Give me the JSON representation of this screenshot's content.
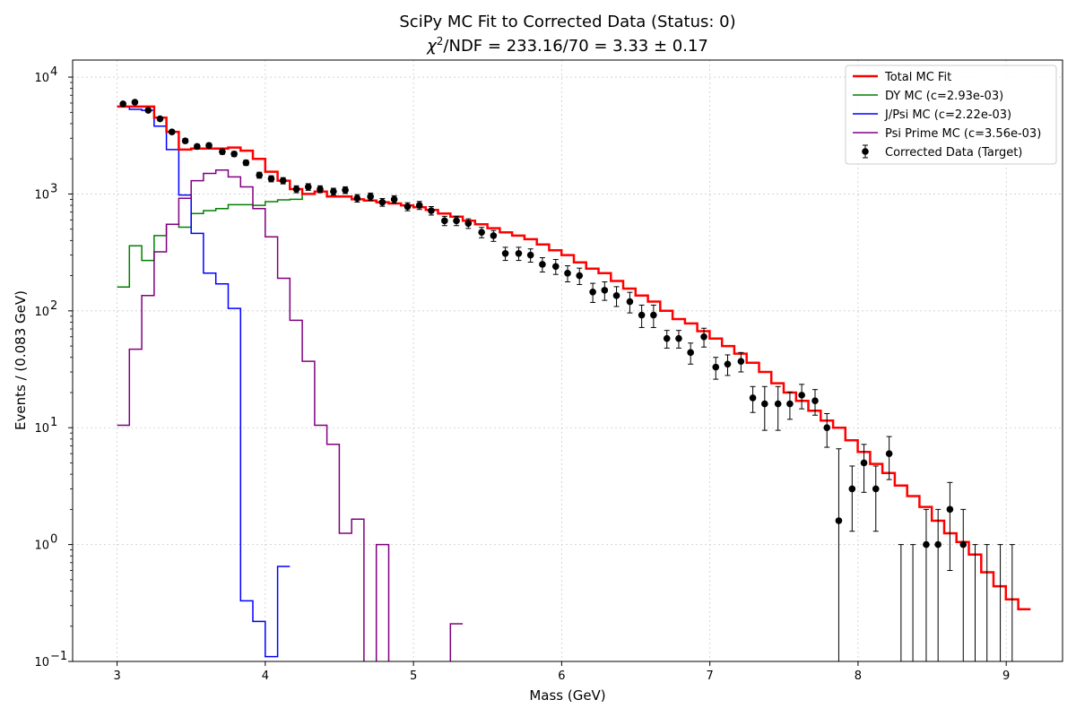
{
  "chart_data": {
    "type": "line",
    "title": "SciPy MC Fit to Corrected Data (Status: 0)",
    "subtitle_prefix": "χ",
    "subtitle_sup": "2",
    "subtitle_rest": "/NDF = 233.16/70 = 3.33 ± 0.17",
    "xlabel": "Mass (GeV)",
    "ylabel": "Events / (0.083 GeV)",
    "xlim": [
      2.7,
      9.38
    ],
    "ylim": [
      0.1,
      14000
    ],
    "yscale": "log",
    "grid": true,
    "legend_position": "top-right",
    "x_ticks": [
      {
        "value": 3,
        "label": "3"
      },
      {
        "value": 4,
        "label": "4"
      },
      {
        "value": 5,
        "label": "5"
      },
      {
        "value": 6,
        "label": "6"
      },
      {
        "value": 7,
        "label": "7"
      },
      {
        "value": 8,
        "label": "8"
      },
      {
        "value": 9,
        "label": "9"
      }
    ],
    "y_ticks": [
      {
        "value": 0.1,
        "base": "10",
        "exp": "−1"
      },
      {
        "value": 1,
        "base": "10",
        "exp": "0"
      },
      {
        "value": 10,
        "base": "10",
        "exp": "1"
      },
      {
        "value": 100,
        "base": "10",
        "exp": "2"
      },
      {
        "value": 1000,
        "base": "10",
        "exp": "3"
      },
      {
        "value": 10000,
        "base": "10",
        "exp": "4"
      }
    ],
    "bin_start": 3.0,
    "bin_width": 0.0833,
    "series": [
      {
        "name": "Total MC Fit",
        "color": "#ff0000",
        "width": 2.5,
        "kind": "step",
        "values": [
          5600,
          5600,
          5600,
          4500,
          3400,
          2400,
          2450,
          2450,
          2450,
          2500,
          2350,
          2000,
          1550,
          1300,
          1100,
          1000,
          1050,
          950,
          950,
          900,
          880,
          850,
          830,
          800,
          770,
          730,
          680,
          640,
          590,
          550,
          510,
          470,
          440,
          410,
          370,
          330,
          300,
          260,
          230,
          210,
          180,
          155,
          135,
          120,
          100,
          85,
          78,
          67,
          58,
          50,
          43,
          36,
          30,
          24,
          20,
          17,
          14,
          11.5,
          10,
          7.8,
          6.2,
          4.9,
          4.1,
          3.2,
          2.6,
          2.1,
          1.6,
          1.25,
          1.05,
          0.82,
          0.58,
          0.44,
          0.34,
          0.28
        ]
      },
      {
        "name": "DY MC (c=2.93e-03)",
        "color": "#008000",
        "width": 1.5,
        "kind": "step",
        "values": [
          160,
          360,
          270,
          440,
          550,
          520,
          680,
          720,
          750,
          810,
          810,
          800,
          860,
          890,
          900,
          1000
        ]
      },
      {
        "name": "J/Psi MC (c=2.22e-03)",
        "color": "#0000ff",
        "width": 1.5,
        "kind": "step",
        "values": [
          5600,
          5300,
          5200,
          3800,
          2400,
          980,
          460,
          210,
          170,
          105,
          0.33,
          0.22,
          0.11,
          0.65
        ]
      },
      {
        "name": "Psi Prime MC (c=3.56e-03)",
        "color": "#800080",
        "width": 1.5,
        "kind": "step",
        "values": [
          10.5,
          47,
          135,
          320,
          550,
          920,
          1300,
          1500,
          1600,
          1400,
          1150,
          750,
          430,
          190,
          83,
          37,
          10.5,
          7.2,
          1.25,
          1.65,
          null,
          1.0,
          null,
          null,
          null,
          null,
          null,
          0.21
        ]
      }
    ],
    "data_points": {
      "name": "Corrected Data (Target)",
      "color": "#000000",
      "x": [
        3.04,
        3.12,
        3.21,
        3.29,
        3.37,
        3.46,
        3.54,
        3.62,
        3.71,
        3.79,
        3.87,
        3.96,
        4.04,
        4.12,
        4.21,
        4.29,
        4.37,
        4.46,
        4.54,
        4.62,
        4.71,
        4.79,
        4.87,
        4.96,
        5.04,
        5.12,
        5.21,
        5.29,
        5.37,
        5.46,
        5.54,
        5.62,
        5.71,
        5.79,
        5.87,
        5.96,
        6.04,
        6.12,
        6.21,
        6.29,
        6.37,
        6.46,
        6.54,
        6.62,
        6.71,
        6.79,
        6.87,
        6.96,
        7.04,
        7.12,
        7.21,
        7.29,
        7.37,
        7.46,
        7.54,
        7.62,
        7.71,
        7.79,
        7.87,
        7.96,
        8.04,
        8.12,
        8.21,
        8.29,
        8.37,
        8.46,
        8.54,
        8.62,
        8.71,
        8.79,
        8.87,
        8.96,
        9.04
      ],
      "y": [
        5900,
        6100,
        5200,
        4400,
        3400,
        2850,
        2550,
        2600,
        2300,
        2200,
        1850,
        1450,
        1350,
        1300,
        1100,
        1150,
        1100,
        1050,
        1080,
        920,
        950,
        850,
        900,
        780,
        800,
        720,
        590,
        590,
        560,
        470,
        440,
        310,
        310,
        300,
        250,
        240,
        210,
        200,
        145,
        150,
        135,
        120,
        92,
        92,
        58,
        58,
        44,
        60,
        33,
        35,
        37,
        18,
        16,
        16,
        16,
        19,
        17,
        10,
        1.6,
        3,
        5,
        3,
        6,
        null,
        null,
        1,
        1,
        2,
        1,
        null,
        null,
        null,
        null
      ],
      "err": [
        180,
        190,
        170,
        150,
        130,
        120,
        110,
        115,
        110,
        105,
        95,
        85,
        80,
        80,
        75,
        75,
        75,
        70,
        72,
        68,
        68,
        65,
        66,
        62,
        63,
        60,
        54,
        54,
        53,
        48,
        47,
        40,
        40,
        39,
        35,
        35,
        33,
        32,
        27,
        27,
        26,
        24,
        20,
        20,
        10,
        10,
        9,
        11,
        7,
        7,
        7,
        4.5,
        6.5,
        6.5,
        4.2,
        4.5,
        4.2,
        3.2,
        5,
        1.7,
        2.2,
        1.7,
        2.4,
        null,
        null,
        1,
        1,
        1.4,
        1,
        null,
        null,
        null,
        null
      ],
      "upper_only_x": [
        8.29,
        8.37,
        8.79,
        8.87,
        8.96,
        9.04
      ]
    }
  }
}
